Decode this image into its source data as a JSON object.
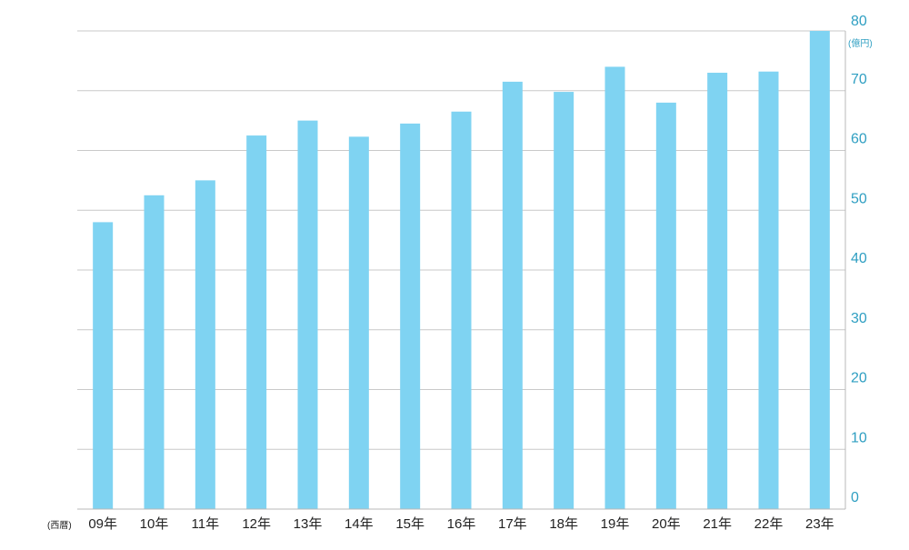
{
  "chart_data": {
    "type": "bar",
    "categories": [
      "09年",
      "10年",
      "11年",
      "12年",
      "13年",
      "14年",
      "15年",
      "16年",
      "17年",
      "18年",
      "19年",
      "20年",
      "21年",
      "22年",
      "23年"
    ],
    "values": [
      48,
      52.5,
      55,
      62.5,
      65,
      62.3,
      64.5,
      66.5,
      71.5,
      69.8,
      74,
      68,
      73,
      73.2,
      80
    ],
    "title": "",
    "xlabel": "(西暦)",
    "ylabel": "(億円)",
    "ylim": [
      0,
      80
    ],
    "y_ticks": [
      0,
      10,
      20,
      30,
      40,
      50,
      60,
      70,
      80
    ],
    "y_axis_side": "right",
    "grid": true,
    "legend": "none",
    "colors": {
      "bar": "#7fd3f2",
      "grid": "#c9c9c9",
      "axis": "#b8b8b8",
      "y_tick_text": "#2f9fc2",
      "x_tick_text": "#222222"
    }
  }
}
